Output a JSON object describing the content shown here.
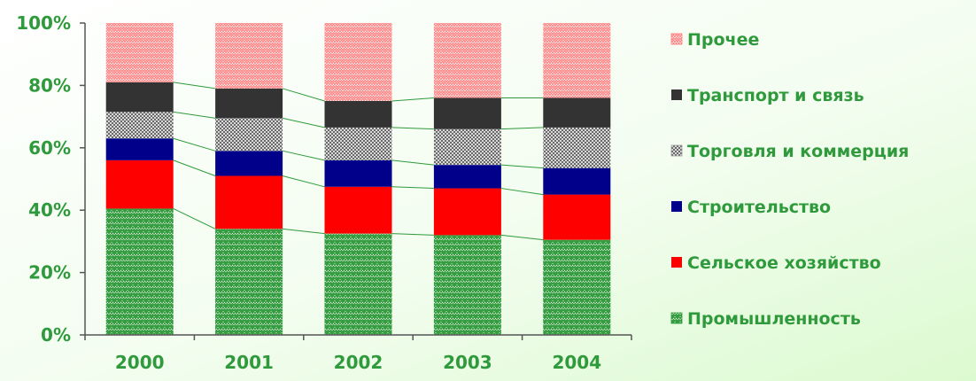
{
  "chart_data": {
    "type": "bar",
    "stacked": true,
    "percent": true,
    "categories": [
      "2000",
      "2001",
      "2002",
      "2003",
      "2004"
    ],
    "series": [
      {
        "name": "Промышленность",
        "values": [
          40.5,
          34,
          32.5,
          32,
          30.5
        ],
        "color": "#2e9a3a",
        "fill": "hatch-green"
      },
      {
        "name": "Сельское хозяйство",
        "values": [
          15.5,
          17,
          15,
          15,
          14.5
        ],
        "color": "#ff0000",
        "fill": "solid"
      },
      {
        "name": "Строительство",
        "values": [
          7,
          8,
          8.5,
          7.5,
          8.5
        ],
        "color": "#00008b",
        "fill": "solid"
      },
      {
        "name": "Торговля и коммерция",
        "values": [
          8.5,
          10.5,
          10.5,
          11.5,
          13
        ],
        "color": "#9e9e9e",
        "fill": "hatch-gray"
      },
      {
        "name": "Транспорт и связь",
        "values": [
          9.5,
          9.5,
          8.5,
          10,
          9.5
        ],
        "color": "#333333",
        "fill": "solid"
      },
      {
        "name": "Прочее",
        "values": [
          19,
          21,
          25,
          24,
          24
        ],
        "color": "#ff8080",
        "fill": "hatch-pink"
      }
    ],
    "y_ticks": [
      "0%",
      "20%",
      "40%",
      "60%",
      "80%",
      "100%"
    ],
    "ylim": [
      0,
      100
    ],
    "series_lines": true,
    "legend_position": "right",
    "legend_order": "reversed",
    "grid": false
  }
}
